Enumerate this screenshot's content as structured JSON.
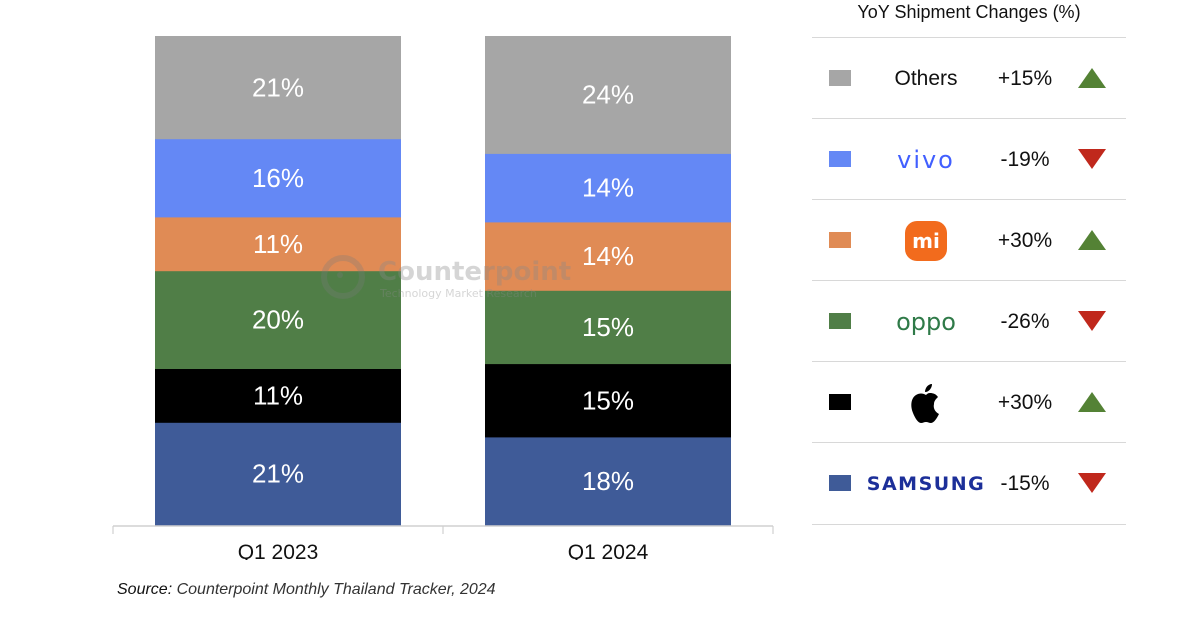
{
  "chart_data": {
    "type": "bar",
    "stacked": true,
    "normalized": true,
    "title": "",
    "xlabel": "",
    "ylabel": "",
    "ylim": [
      0,
      100
    ],
    "grid": false,
    "categories": [
      "Q1 2023",
      "Q1 2024"
    ],
    "series": [
      {
        "name": "Samsung",
        "color": "#3f5b98",
        "values": [
          21,
          18
        ],
        "labels": [
          "21%",
          "18%"
        ]
      },
      {
        "name": "Apple",
        "color": "#000000",
        "values": [
          11,
          15
        ],
        "labels": [
          "11%",
          "15%"
        ]
      },
      {
        "name": "OPPO",
        "color": "#507e47",
        "values": [
          20,
          15
        ],
        "labels": [
          "20%",
          "15%"
        ]
      },
      {
        "name": "Xiaomi",
        "color": "#e08b55",
        "values": [
          11,
          14
        ],
        "labels": [
          "11%",
          "14%"
        ]
      },
      {
        "name": "vivo",
        "color": "#6488f5",
        "values": [
          16,
          14
        ],
        "labels": [
          "16%",
          "14%"
        ]
      },
      {
        "name": "Others",
        "color": "#a6a6a6",
        "values": [
          21,
          24
        ],
        "labels": [
          "21%",
          "24%"
        ]
      }
    ],
    "watermark": {
      "brand": "Counterpoint",
      "tagline": "Technology Market Research"
    }
  },
  "legend": {
    "title": "YoY Shipment Changes (%)",
    "items": [
      {
        "brand": "Others",
        "logo": "text",
        "color": "#a6a6a6",
        "change": "+15%",
        "direction": "up"
      },
      {
        "brand": "vivo",
        "logo": "vivo-logo",
        "color": "#6488f5",
        "change": "-19%",
        "direction": "down"
      },
      {
        "brand": "Xiaomi",
        "logo": "mi-logo",
        "logo_text": "mi",
        "color": "#e08b55",
        "change": "+30%",
        "direction": "up"
      },
      {
        "brand": "oppo",
        "logo": "oppo-logo",
        "color": "#507e47",
        "change": "-26%",
        "direction": "down"
      },
      {
        "brand": "Apple",
        "logo": "apple-logo",
        "color": "#000000",
        "change": "+30%",
        "direction": "up"
      },
      {
        "brand": "SAMSUNG",
        "logo": "samsung-logo",
        "color": "#3f5b98",
        "change": "-15%",
        "direction": "down"
      }
    ],
    "up_color": "#548235",
    "down_color": "#c0281c"
  },
  "source": {
    "label": "Source:",
    "text": " Counterpoint Monthly Thailand Tracker, 2024"
  }
}
